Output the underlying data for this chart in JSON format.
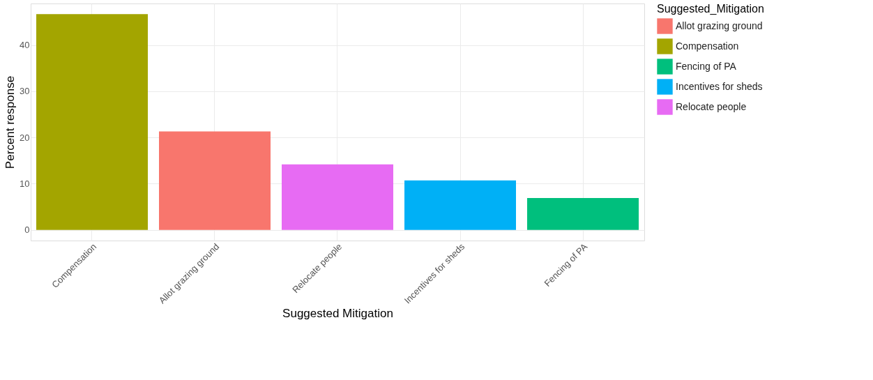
{
  "chart_data": {
    "type": "bar",
    "xlabel": "Suggested Mitigation",
    "ylabel": "Percent response",
    "legend_title": "Suggested_Mitigation",
    "categories": [
      "Compensation",
      "Allot grazing ground",
      "Relocate people",
      "Incentives for sheds",
      "Fencing of PA"
    ],
    "series": [
      {
        "name": "Allot grazing ground",
        "color": "#f8766d",
        "values": [
          null,
          21.3,
          null,
          null,
          null
        ]
      },
      {
        "name": "Compensation",
        "color": "#a3a500",
        "values": [
          46.7,
          null,
          null,
          null,
          null
        ]
      },
      {
        "name": "Fencing of PA",
        "color": "#00bf7d",
        "values": [
          null,
          null,
          null,
          null,
          6.9
        ]
      },
      {
        "name": "Incentives for sheds",
        "color": "#00b0f6",
        "values": [
          null,
          null,
          null,
          10.7,
          null
        ]
      },
      {
        "name": "Relocate people",
        "color": "#e76bf3",
        "values": [
          null,
          null,
          14.2,
          null,
          null
        ]
      }
    ],
    "ylim": [
      -2.3,
      49
    ],
    "yticks": [
      0,
      10,
      20,
      30,
      40
    ],
    "grid": true,
    "legend": "right"
  }
}
